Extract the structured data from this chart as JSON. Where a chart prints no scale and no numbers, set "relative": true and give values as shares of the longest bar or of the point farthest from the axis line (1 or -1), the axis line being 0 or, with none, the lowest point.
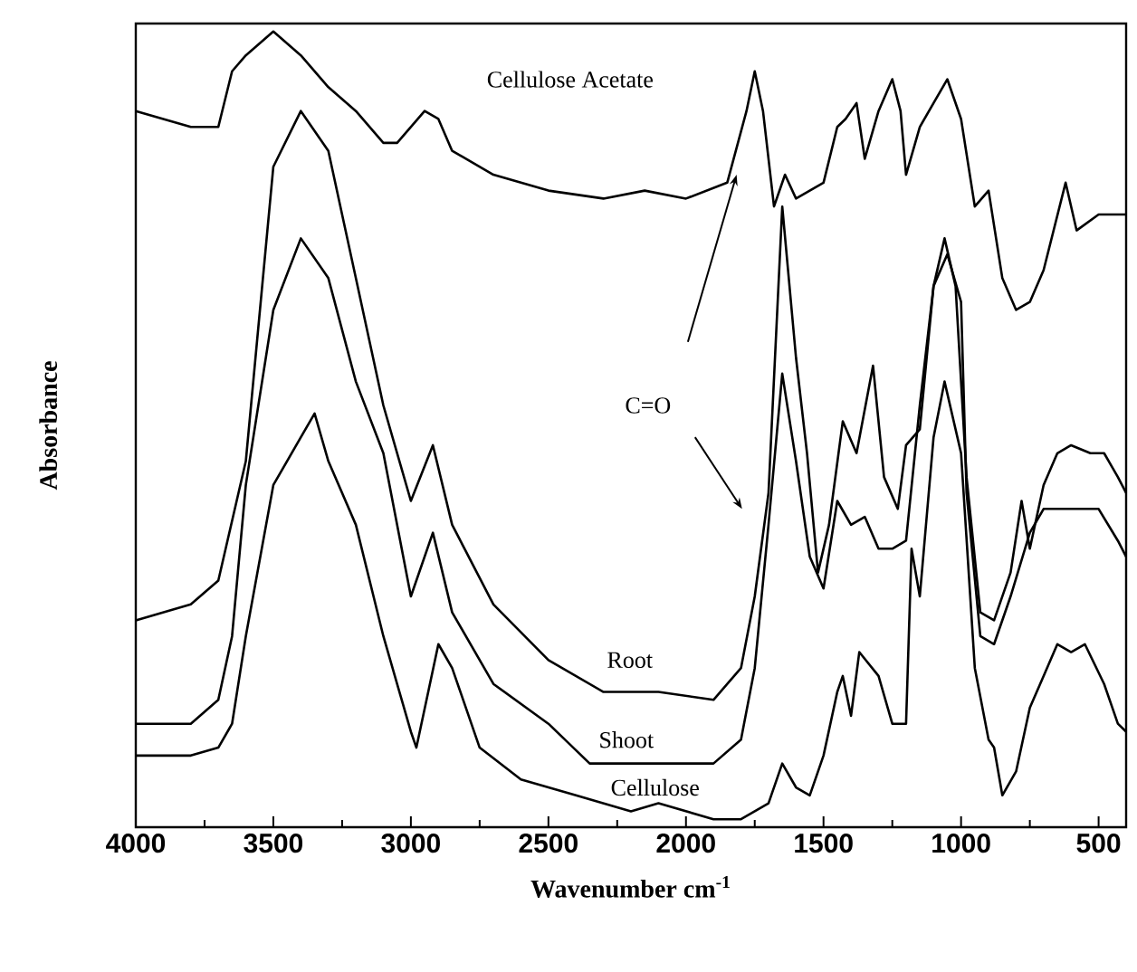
{
  "chart_data": {
    "type": "line",
    "xlabel": "Wavenumber cm$^{-1}$",
    "ylabel": "Absorbance",
    "relative": true,
    "tick_labels": "x",
    "legend": false,
    "grid": false,
    "xlim": [
      4000,
      400
    ],
    "xticks": [
      4000,
      3500,
      3000,
      2500,
      2000,
      1500,
      1000,
      500
    ],
    "annotations": [
      "C=O"
    ],
    "series": [
      {
        "name": "Cellulose Acetate",
        "color": "#000000",
        "x": [
          4000,
          3800,
          3700,
          3650,
          3600,
          3500,
          3400,
          3300,
          3200,
          3100,
          3050,
          2950,
          2900,
          2850,
          2700,
          2500,
          2300,
          2150,
          2000,
          1850,
          1780,
          1750,
          1720,
          1680,
          1640,
          1600,
          1500,
          1450,
          1420,
          1380,
          1350,
          1300,
          1250,
          1220,
          1200,
          1150,
          1100,
          1050,
          1000,
          950,
          900,
          850,
          800,
          750,
          700,
          620,
          580,
          500,
          400
        ],
        "values": [
          0.9,
          0.88,
          0.88,
          0.95,
          0.97,
          1.0,
          0.97,
          0.93,
          0.9,
          0.86,
          0.86,
          0.9,
          0.89,
          0.85,
          0.82,
          0.8,
          0.79,
          0.8,
          0.79,
          0.81,
          0.9,
          0.95,
          0.9,
          0.78,
          0.82,
          0.79,
          0.81,
          0.88,
          0.89,
          0.91,
          0.84,
          0.9,
          0.94,
          0.9,
          0.82,
          0.88,
          0.91,
          0.94,
          0.89,
          0.78,
          0.8,
          0.69,
          0.65,
          0.66,
          0.7,
          0.81,
          0.75,
          0.77,
          0.77
        ]
      },
      {
        "name": "Root",
        "color": "#000000",
        "x": [
          4000,
          3800,
          3700,
          3600,
          3500,
          3400,
          3300,
          3200,
          3100,
          3000,
          2920,
          2850,
          2700,
          2500,
          2300,
          2100,
          1900,
          1800,
          1750,
          1700,
          1650,
          1600,
          1560,
          1520,
          1480,
          1430,
          1380,
          1320,
          1280,
          1230,
          1200,
          1150,
          1100,
          1060,
          1020,
          980,
          930,
          880,
          820,
          780,
          750,
          700,
          650,
          600,
          530,
          480,
          430,
          400
        ],
        "values": [
          0.26,
          0.28,
          0.31,
          0.46,
          0.83,
          0.9,
          0.85,
          0.69,
          0.53,
          0.41,
          0.48,
          0.38,
          0.28,
          0.21,
          0.17,
          0.17,
          0.16,
          0.2,
          0.29,
          0.42,
          0.78,
          0.59,
          0.47,
          0.32,
          0.38,
          0.51,
          0.47,
          0.58,
          0.44,
          0.4,
          0.48,
          0.5,
          0.68,
          0.74,
          0.68,
          0.44,
          0.27,
          0.26,
          0.32,
          0.41,
          0.35,
          0.43,
          0.47,
          0.48,
          0.47,
          0.47,
          0.44,
          0.42
        ]
      },
      {
        "name": "Shoot",
        "color": "#000000",
        "x": [
          4000,
          3800,
          3700,
          3650,
          3600,
          3500,
          3400,
          3300,
          3200,
          3100,
          3000,
          2920,
          2850,
          2700,
          2500,
          2350,
          2100,
          1900,
          1800,
          1750,
          1700,
          1650,
          1600,
          1550,
          1500,
          1450,
          1400,
          1350,
          1300,
          1250,
          1200,
          1150,
          1100,
          1050,
          1000,
          980,
          930,
          880,
          820,
          750,
          700,
          600,
          500,
          430,
          400
        ],
        "values": [
          0.13,
          0.13,
          0.16,
          0.24,
          0.43,
          0.65,
          0.74,
          0.69,
          0.56,
          0.47,
          0.29,
          0.37,
          0.27,
          0.18,
          0.13,
          0.08,
          0.08,
          0.08,
          0.11,
          0.2,
          0.38,
          0.57,
          0.46,
          0.34,
          0.3,
          0.41,
          0.38,
          0.39,
          0.35,
          0.35,
          0.36,
          0.53,
          0.68,
          0.72,
          0.66,
          0.42,
          0.24,
          0.23,
          0.29,
          0.37,
          0.4,
          0.4,
          0.4,
          0.36,
          0.34
        ]
      },
      {
        "name": "Cellulose",
        "color": "#000000",
        "x": [
          4000,
          3800,
          3700,
          3650,
          3600,
          3500,
          3400,
          3350,
          3300,
          3200,
          3100,
          3000,
          2980,
          2900,
          2850,
          2750,
          2600,
          2400,
          2200,
          2100,
          1900,
          1800,
          1700,
          1650,
          1600,
          1550,
          1500,
          1450,
          1430,
          1400,
          1370,
          1300,
          1250,
          1200,
          1180,
          1150,
          1100,
          1060,
          1000,
          950,
          900,
          880,
          850,
          800,
          750,
          700,
          650,
          600,
          550,
          480,
          430,
          400
        ],
        "values": [
          0.09,
          0.09,
          0.1,
          0.13,
          0.24,
          0.43,
          0.49,
          0.52,
          0.46,
          0.38,
          0.24,
          0.12,
          0.1,
          0.23,
          0.2,
          0.1,
          0.06,
          0.04,
          0.02,
          0.03,
          0.01,
          0.01,
          0.03,
          0.08,
          0.05,
          0.04,
          0.09,
          0.17,
          0.19,
          0.14,
          0.22,
          0.19,
          0.13,
          0.13,
          0.35,
          0.29,
          0.49,
          0.56,
          0.47,
          0.2,
          0.11,
          0.1,
          0.04,
          0.07,
          0.15,
          0.19,
          0.23,
          0.22,
          0.23,
          0.18,
          0.13,
          0.12
        ]
      }
    ]
  }
}
